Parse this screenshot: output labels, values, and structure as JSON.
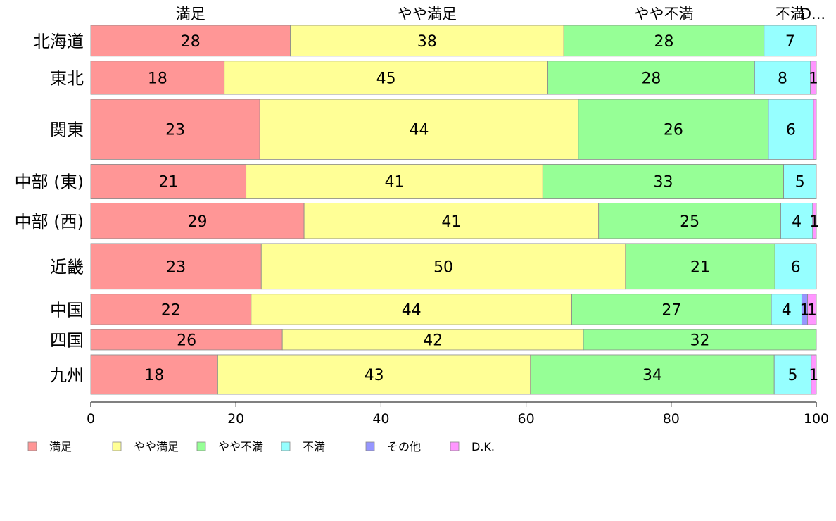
{
  "chart_data": {
    "type": "bar",
    "orientation": "horizontal",
    "stacked": true,
    "percent_stacked": true,
    "categories": [
      "北海道",
      "東北",
      "関東",
      "中部 (東)",
      "中部 (西)",
      "近畿",
      "中国",
      "四国",
      "九州"
    ],
    "series": [
      {
        "name": "満足",
        "color": "#ff9696",
        "values": [
          27.5,
          18.4,
          23.3,
          21.4,
          29.4,
          23.5,
          22.1,
          26.4,
          17.5
        ]
      },
      {
        "name": "やや満足",
        "color": "#ffff96",
        "values": [
          37.7,
          44.6,
          43.9,
          40.9,
          40.6,
          50.2,
          44.2,
          41.5,
          43.1
        ]
      },
      {
        "name": "やや不満",
        "color": "#96ff96",
        "values": [
          27.6,
          28.5,
          26.2,
          33.2,
          25.1,
          20.6,
          27.5,
          32.1,
          33.6
        ]
      },
      {
        "name": "不満",
        "color": "#96ffff",
        "values": [
          7.2,
          7.7,
          6.2,
          4.5,
          4.4,
          5.7,
          4.2,
          0.0,
          5.1
        ]
      },
      {
        "name": "その他",
        "color": "#9696ff",
        "values": [
          0.0,
          0.0,
          0.0,
          0.0,
          0.0,
          0.0,
          0.8,
          0.0,
          0.0
        ]
      },
      {
        "name": "D.K.",
        "color": "#ff96ff",
        "values": [
          0.0,
          0.8,
          0.4,
          0.0,
          0.5,
          0.0,
          1.2,
          0.0,
          0.7
        ]
      }
    ],
    "bar_labels": [
      [
        "28",
        "38",
        "28",
        "7",
        "",
        ""
      ],
      [
        "18",
        "45",
        "28",
        "8",
        "",
        "1"
      ],
      [
        "23",
        "44",
        "26",
        "6",
        "",
        ""
      ],
      [
        "21",
        "41",
        "33",
        "5",
        "",
        ""
      ],
      [
        "29",
        "41",
        "25",
        "4",
        "",
        "1"
      ],
      [
        "23",
        "50",
        "21",
        "6",
        "",
        ""
      ],
      [
        "22",
        "44",
        "27",
        "4",
        "1",
        "1"
      ],
      [
        "26",
        "42",
        "32",
        "",
        "",
        ""
      ],
      [
        "18",
        "43",
        "34",
        "5",
        "",
        "1"
      ]
    ],
    "row_weights": [
      1.0,
      1.08,
      1.95,
      1.1,
      1.15,
      1.48,
      0.99,
      0.66,
      1.28
    ],
    "top_labels": [
      "満足",
      "やや満足",
      "やや不満",
      "不満",
      "D..."
    ],
    "xlim": [
      0,
      100
    ],
    "xticks": [
      "0",
      "20",
      "40",
      "60",
      "80",
      "100"
    ],
    "title": "",
    "xlabel": "",
    "ylabel": "",
    "grid": false,
    "legend_position": "bottom-left"
  }
}
